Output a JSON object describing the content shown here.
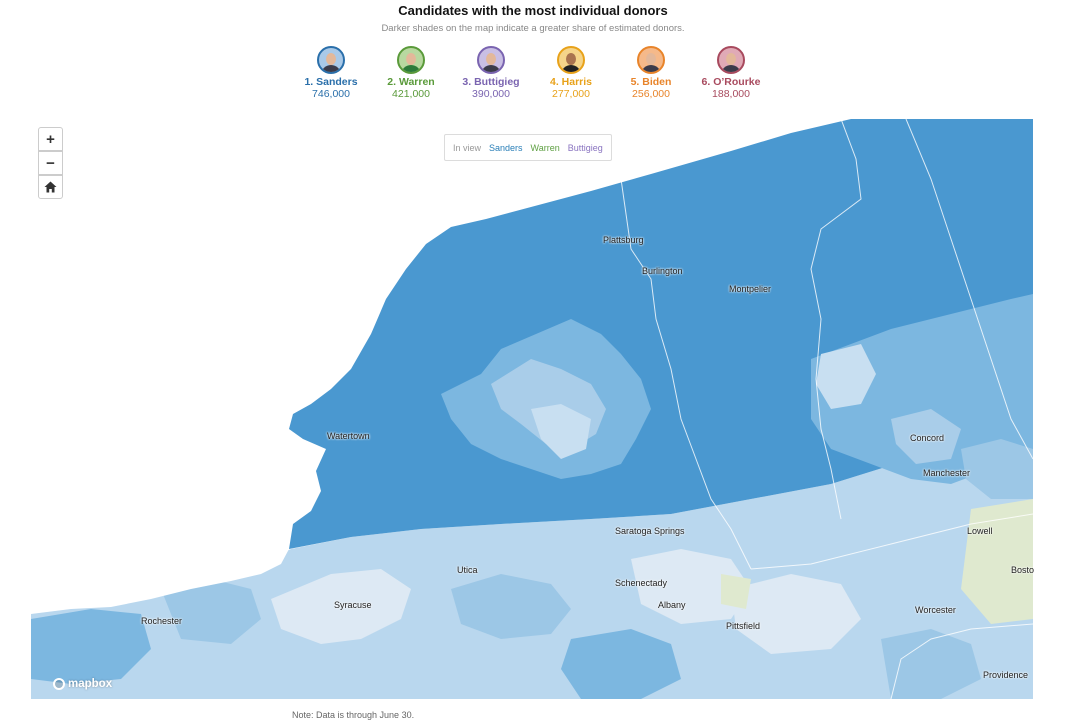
{
  "header": {
    "title": "Candidates with the most individual donors",
    "subtitle": "Darker shades on the map indicate a greater share of estimated donors."
  },
  "candidates": [
    {
      "label": "1. Sanders",
      "count": "746,000",
      "color": "#2a6faa"
    },
    {
      "label": "2. Warren",
      "count": "421,000",
      "color": "#5a9a3a"
    },
    {
      "label": "3. Buttigieg",
      "count": "390,000",
      "color": "#7a64b0"
    },
    {
      "label": "4. Harris",
      "count": "277,000",
      "color": "#e8a21a"
    },
    {
      "label": "5. Biden",
      "count": "256,000",
      "color": "#e8842a"
    },
    {
      "label": "6. O’Rourke",
      "count": "188,000",
      "color": "#a84a5e"
    }
  ],
  "legend": {
    "label": "In view",
    "items": [
      {
        "name": "Sanders",
        "color": "#2a7fb8"
      },
      {
        "name": "Warren",
        "color": "#5fa043"
      },
      {
        "name": "Buttigieg",
        "color": "#8a74c0"
      }
    ]
  },
  "controls": {
    "zoom_in": "+",
    "zoom_out": "−",
    "home_icon": "home-icon"
  },
  "cities": [
    {
      "name": "Plattsburg"
    },
    {
      "name": "Burlington"
    },
    {
      "name": "Montpelier"
    },
    {
      "name": "Watertown"
    },
    {
      "name": "Concord"
    },
    {
      "name": "Manchester"
    },
    {
      "name": "Saratoga Springs"
    },
    {
      "name": "Lowell"
    },
    {
      "name": "Utica"
    },
    {
      "name": "Schenectady"
    },
    {
      "name": "Albany"
    },
    {
      "name": "Syracuse"
    },
    {
      "name": "Rochester"
    },
    {
      "name": "Pittsfield"
    },
    {
      "name": "Worcester"
    },
    {
      "name": "Bosto"
    },
    {
      "name": "Providence"
    }
  ],
  "map_colors": {
    "dark": "#4a98d0",
    "mid": "#7cb7e0",
    "light": "#b9d7ee",
    "pale": "#dde9f4",
    "green": "#dfe9cf"
  },
  "attribution": "mapbox",
  "note": "Note: Data is through June 30."
}
